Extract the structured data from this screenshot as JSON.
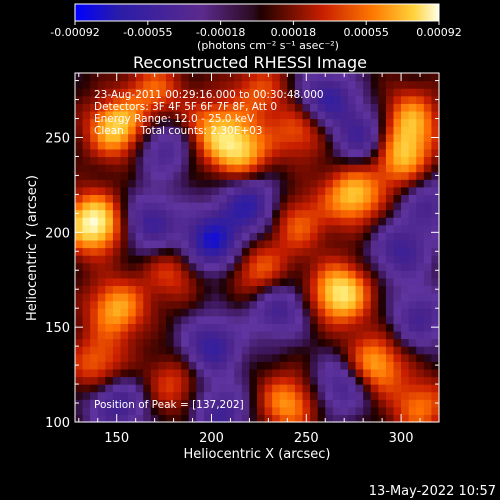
{
  "chart_data": {
    "type": "heatmap",
    "title": "Reconstructed RHESSI Image",
    "xlabel": "Heliocentric X (arcsec)",
    "ylabel": "Heliocentric Y (arcsec)",
    "xlim": [
      128,
      320
    ],
    "ylim": [
      100,
      284
    ],
    "x_ticks": [
      150,
      200,
      250,
      300
    ],
    "y_ticks": [
      100,
      150,
      200,
      250
    ],
    "colorbar": {
      "min": -0.00092,
      "max": 0.00092,
      "ticks": [
        "-0.00092",
        "-0.00055",
        "-0.00018",
        "0.00018",
        "0.00055",
        "0.00092"
      ],
      "units": "(photons cm⁻² s⁻¹ asec⁻²)",
      "colors": [
        "#0000ff",
        "#3a1ca0",
        "#5c2a8c",
        "#6a34a0",
        "#1a0000",
        "#8c1400",
        "#e02800",
        "#ff7a00",
        "#ffd23a",
        "#ffffe8"
      ]
    },
    "annotations": [
      "23-Aug-2011 00:29:16.000 to 00:30:48.000",
      "Detectors: 3F 4F 5F 6F 7F 8F, Att 0",
      "Energy Range: 12.0 - 25.0 keV",
      "Clean     Total counts: 2.30E+03"
    ],
    "peak_label": "Position of Peak = [137,202]",
    "hot_spots": [
      {
        "x": 138,
        "y": 205,
        "v": 1.0
      },
      {
        "x": 150,
        "y": 255,
        "v": 0.8
      },
      {
        "x": 200,
        "y": 255,
        "v": 0.55
      },
      {
        "x": 215,
        "y": 243,
        "v": 0.75
      },
      {
        "x": 248,
        "y": 255,
        "v": 0.5
      },
      {
        "x": 300,
        "y": 240,
        "v": 0.7
      },
      {
        "x": 275,
        "y": 220,
        "v": 0.75
      },
      {
        "x": 305,
        "y": 260,
        "v": 0.6
      },
      {
        "x": 268,
        "y": 168,
        "v": 0.9
      },
      {
        "x": 285,
        "y": 130,
        "v": 0.75
      },
      {
        "x": 225,
        "y": 180,
        "v": 0.5
      },
      {
        "x": 245,
        "y": 205,
        "v": 0.45
      },
      {
        "x": 180,
        "y": 180,
        "v": 0.4
      },
      {
        "x": 150,
        "y": 160,
        "v": 0.65
      },
      {
        "x": 140,
        "y": 130,
        "v": 0.5
      },
      {
        "x": 180,
        "y": 120,
        "v": 0.4
      },
      {
        "x": 240,
        "y": 110,
        "v": 0.6
      },
      {
        "x": 310,
        "y": 108,
        "v": 0.5
      },
      {
        "x": 225,
        "y": 275,
        "v": 0.4
      },
      {
        "x": 170,
        "y": 275,
        "v": 0.45
      }
    ],
    "cold_spots": [
      {
        "x": 200,
        "y": 195,
        "v": -0.85
      },
      {
        "x": 220,
        "y": 215,
        "v": -0.7
      },
      {
        "x": 168,
        "y": 205,
        "v": -0.6
      },
      {
        "x": 260,
        "y": 270,
        "v": -0.7
      },
      {
        "x": 280,
        "y": 250,
        "v": -0.6
      },
      {
        "x": 235,
        "y": 160,
        "v": -0.55
      },
      {
        "x": 200,
        "y": 140,
        "v": -0.65
      },
      {
        "x": 300,
        "y": 190,
        "v": -0.55
      },
      {
        "x": 310,
        "y": 155,
        "v": -0.5
      },
      {
        "x": 150,
        "y": 110,
        "v": -0.6
      },
      {
        "x": 205,
        "y": 105,
        "v": -0.55
      },
      {
        "x": 270,
        "y": 120,
        "v": -0.6
      },
      {
        "x": 175,
        "y": 245,
        "v": -0.5
      },
      {
        "x": 315,
        "y": 215,
        "v": -0.45
      }
    ]
  },
  "footer_timestamp": "13-May-2022 10:57"
}
